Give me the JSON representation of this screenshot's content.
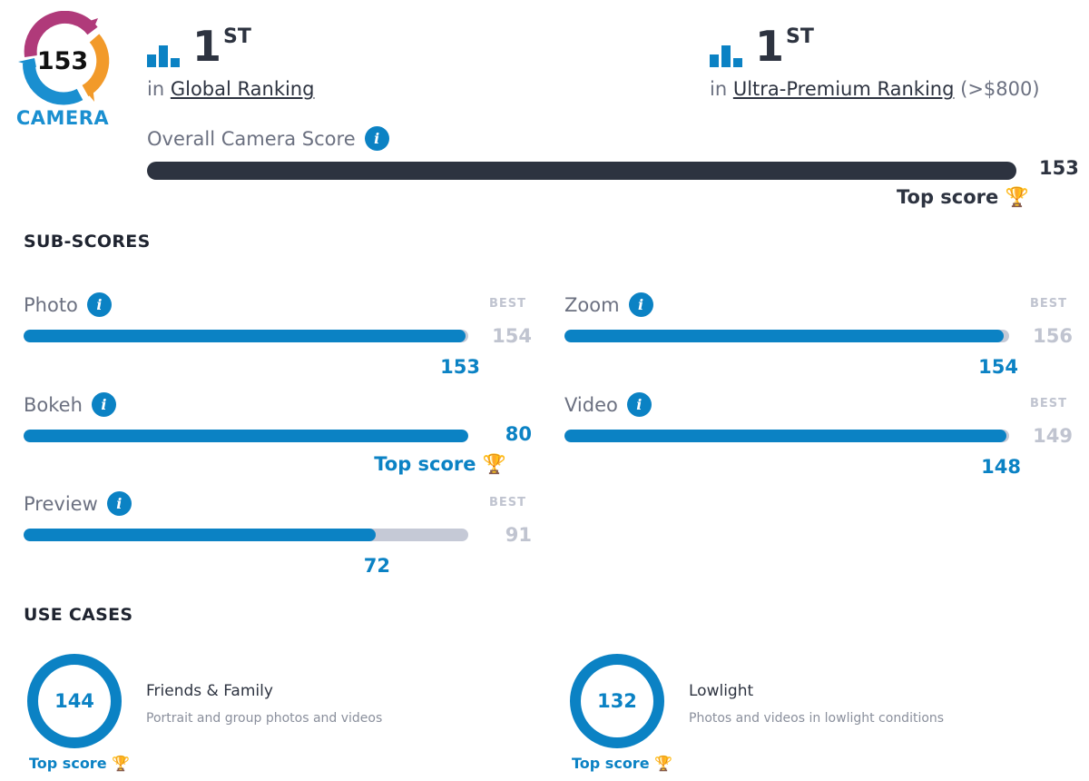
{
  "logo": {
    "score": "153",
    "label": "CAMERA"
  },
  "rankings": [
    {
      "position": "1",
      "suffix": "ST",
      "prefix": "in",
      "link": "Global Ranking",
      "note": ""
    },
    {
      "position": "1",
      "suffix": "ST",
      "prefix": "in",
      "link": "Ultra-Premium Ranking",
      "note": "(>$800)"
    }
  ],
  "overall": {
    "label": "Overall Camera Score",
    "score": "153",
    "max": 153,
    "top_score_label": "Top score"
  },
  "subscores": {
    "title": "SUB-SCORES",
    "best_label": "BEST",
    "items": [
      {
        "name": "Photo",
        "score": 153,
        "best": 154,
        "top": false
      },
      {
        "name": "Zoom",
        "score": 154,
        "best": 156,
        "top": false
      },
      {
        "name": "Bokeh",
        "score": 80,
        "best": 80,
        "top": true
      },
      {
        "name": "Video",
        "score": 148,
        "best": 149,
        "top": false
      },
      {
        "name": "Preview",
        "score": 72,
        "best": 91,
        "top": false
      }
    ]
  },
  "use_cases": {
    "title": "USE CASES",
    "items": [
      {
        "score": "144",
        "title": "Friends & Family",
        "desc": "Portrait and group photos and videos",
        "top_label": "Top score"
      },
      {
        "score": "132",
        "title": "Lowlight",
        "desc": "Photos and videos in lowlight conditions",
        "top_label": "Top score"
      }
    ]
  },
  "colors": {
    "accent": "#0b82c4",
    "dark": "#2d3340",
    "track": "#c5c9d6",
    "trophy": "#f5b52e"
  }
}
